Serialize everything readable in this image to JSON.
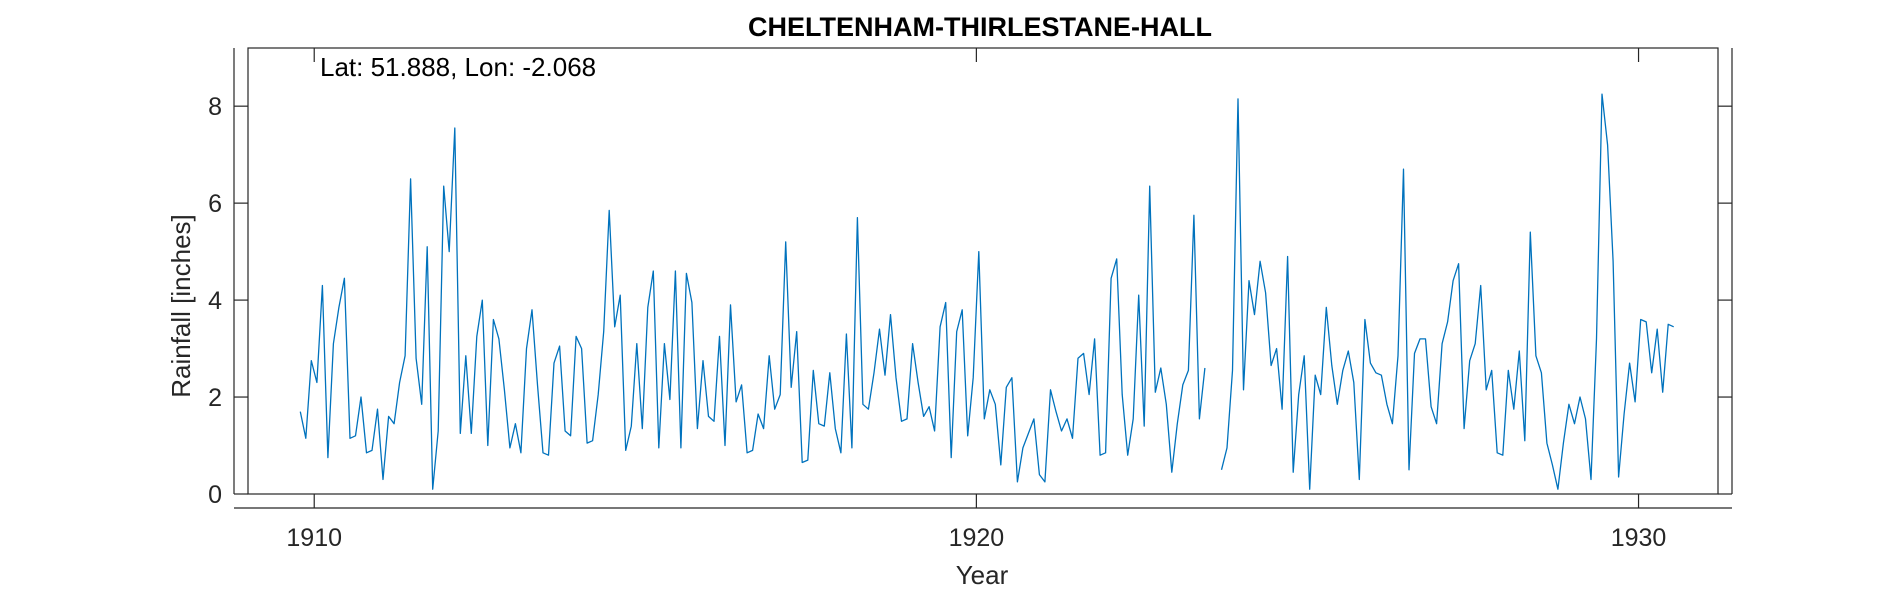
{
  "chart_data": {
    "type": "line",
    "title": "CHELTENHAM-THIRLESTANE-HALL",
    "annotation": "Lat: 51.888, Lon: -2.068",
    "xlabel": "Year",
    "ylabel": "Rainfall [inches]",
    "xlim": [
      1909,
      1931.2
    ],
    "ylim": [
      0,
      9.2
    ],
    "xticks": [
      1910,
      1920,
      1930
    ],
    "xtick_labels": [
      "1910",
      "1920",
      "1930"
    ],
    "yticks": [
      0,
      2,
      4,
      6,
      8
    ],
    "ytick_labels": [
      "0",
      "2",
      "4",
      "6",
      "8"
    ],
    "grid": false,
    "legend": "none",
    "series_color": "#0072bd",
    "x_start": 1909.79,
    "x_step": 0.0833,
    "series": [
      {
        "values": [
          1.7,
          1.15,
          2.75,
          2.3,
          4.3,
          0.75,
          3.1,
          3.85,
          4.45,
          1.15,
          1.2,
          2.0,
          0.85,
          0.9,
          1.75,
          0.3,
          1.6,
          1.45,
          2.3,
          2.85,
          6.5,
          2.8,
          1.85,
          5.1,
          0.1,
          1.3,
          6.35,
          5.0,
          7.55,
          1.25,
          2.85,
          1.25,
          3.25,
          4.0,
          1.0,
          3.6,
          3.2,
          2.15,
          0.95,
          1.45,
          0.85,
          3.0,
          3.8,
          2.25,
          0.85,
          0.8,
          2.7,
          3.05,
          1.3,
          1.2,
          3.25,
          3.0,
          1.05,
          1.1,
          2.05,
          3.35,
          5.85,
          3.45,
          4.1,
          0.9,
          1.4,
          3.1,
          1.35,
          3.85,
          4.6,
          0.95,
          3.1,
          1.95,
          4.6,
          0.95,
          4.55,
          3.95,
          1.35,
          2.75,
          1.6,
          1.5,
          3.25,
          1.0,
          3.9,
          1.9,
          2.25,
          0.85,
          0.9,
          1.65,
          1.35,
          2.85,
          1.75,
          2.05,
          5.2,
          2.2,
          3.35,
          0.65,
          0.7,
          2.55,
          1.45,
          1.4,
          2.5,
          1.35,
          0.85,
          3.3,
          0.95,
          5.7,
          1.85,
          1.75,
          2.5,
          3.4,
          2.45,
          3.7,
          2.4,
          1.5,
          1.55,
          3.1,
          2.3,
          1.6,
          1.8,
          1.3,
          3.45,
          3.95,
          0.75,
          3.35,
          3.8,
          1.2,
          2.4,
          5.0,
          1.55,
          2.15,
          1.85,
          0.6,
          2.2,
          2.4,
          0.25,
          0.95,
          1.25,
          1.55,
          0.4,
          0.25,
          2.15,
          1.7,
          1.3,
          1.55,
          1.15,
          2.8,
          2.9,
          2.05,
          3.2,
          0.8,
          0.85,
          4.45,
          4.85,
          2.05,
          0.8,
          1.55,
          4.1,
          1.4,
          6.35,
          2.1,
          2.6,
          1.85,
          0.45,
          1.45,
          2.25,
          2.55,
          5.75,
          1.55,
          2.6,
          null,
          null,
          0.5,
          0.95,
          2.55,
          8.15,
          2.15,
          4.4,
          3.7,
          4.8,
          4.15,
          2.65,
          3.0,
          1.75,
          4.9,
          0.45,
          2.05,
          2.85,
          0.1,
          2.45,
          2.05,
          3.85,
          2.65,
          1.85,
          2.55,
          2.95,
          2.3,
          0.3,
          3.6,
          2.7,
          2.5,
          2.45,
          1.85,
          1.45,
          2.85,
          6.7,
          0.5,
          2.9,
          3.2,
          3.2,
          1.8,
          1.45,
          3.1,
          3.55,
          4.4,
          4.75,
          1.35,
          2.75,
          3.1,
          4.3,
          2.15,
          2.55,
          0.85,
          0.8,
          2.55,
          1.75,
          2.95,
          1.1,
          5.4,
          2.85,
          2.5,
          1.05,
          0.6,
          0.1,
          1.05,
          1.85,
          1.45,
          2.0,
          1.55,
          0.3,
          3.2,
          8.25,
          7.2,
          4.8,
          0.35,
          1.65,
          2.7,
          1.9,
          3.6,
          3.55,
          2.5,
          3.4,
          2.1,
          3.5,
          3.45
        ]
      }
    ]
  }
}
